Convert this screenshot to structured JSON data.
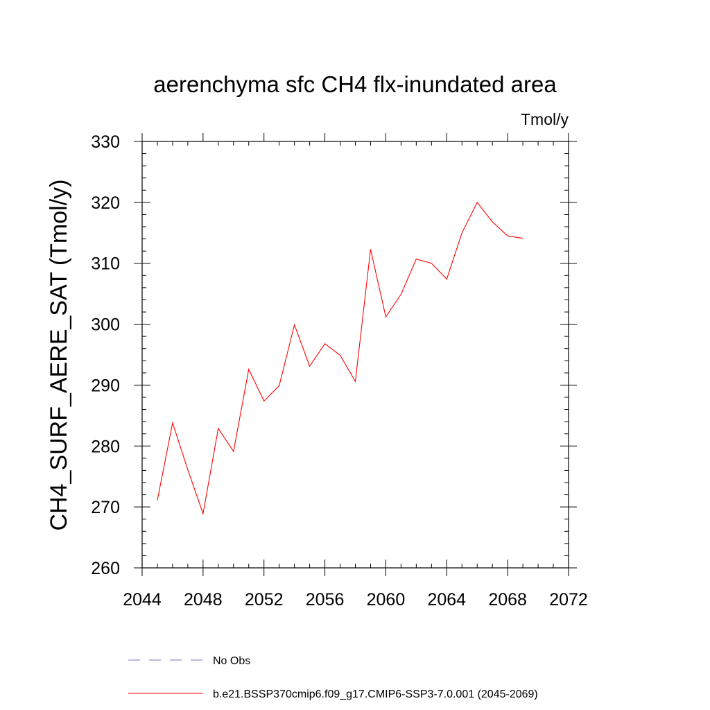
{
  "chart_data": {
    "type": "line",
    "title": "aerenchyma sfc CH4 flx-inundated area",
    "units": "Tmol/y",
    "xlabel": "",
    "ylabel": "CH4_SURF_AERE_SAT  (Tmol/y)",
    "xlim": [
      2044,
      2072
    ],
    "ylim": [
      260,
      330
    ],
    "x_ticks": [
      2044,
      2048,
      2052,
      2056,
      2060,
      2064,
      2068,
      2072
    ],
    "x_tick_labels": [
      "2044",
      "2048",
      "2052",
      "2056",
      "2060",
      "2064",
      "2068",
      "2072"
    ],
    "x_minor_step": 1,
    "y_ticks": [
      260,
      270,
      280,
      290,
      300,
      310,
      320,
      330
    ],
    "y_tick_labels": [
      "260",
      "270",
      "280",
      "290",
      "300",
      "310",
      "320",
      "330"
    ],
    "y_minor_step": 2,
    "grid": false,
    "legend_position": "bottom",
    "series": [
      {
        "name": "b.e21.BSSP370cmip6.f09_g17.CMIP6-SSP3-7.0.001 (2045-2069)",
        "color": "#ff0000",
        "dash": "solid",
        "x": [
          2045,
          2046,
          2047,
          2048,
          2049,
          2050,
          2051,
          2052,
          2053,
          2054,
          2055,
          2056,
          2057,
          2058,
          2059,
          2060,
          2061,
          2062,
          2063,
          2064,
          2065,
          2066,
          2067,
          2068,
          2069
        ],
        "values": [
          271.1,
          283.8,
          276.1,
          268.9,
          282.9,
          279.1,
          292.6,
          287.4,
          289.9,
          299.9,
          293.1,
          296.8,
          294.9,
          290.6,
          312.3,
          301.2,
          304.9,
          310.7,
          310.0,
          307.4,
          315.0,
          320.0,
          316.8,
          314.5,
          314.1
        ]
      }
    ],
    "legend": [
      {
        "label": "No Obs",
        "color": "#7b6fc4",
        "dash": "dashed"
      },
      {
        "label": "b.e21.BSSP370cmip6.f09_g17.CMIP6-SSP3-7.0.001 (2045-2069)",
        "color": "#ff0000",
        "dash": "solid"
      }
    ]
  }
}
